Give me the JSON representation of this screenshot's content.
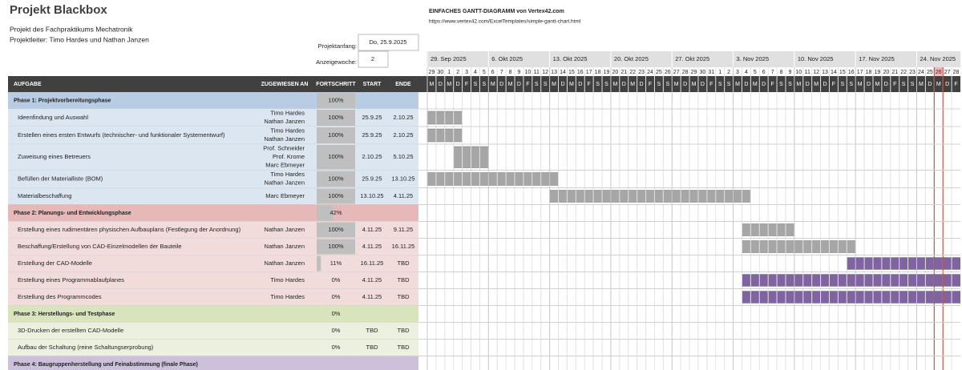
{
  "header": {
    "title": "Projekt Blackbox",
    "subtitle": "Projekt des Fachpraktikums Mechatronik",
    "lead": "Projektleiter: Timo Hardes und Nathan Janzen",
    "template_title": "EINFACHES GANTT-DIAGRAMM von Vertex42.com",
    "template_url": "https://www.vertex42.com/ExcelTemplates/simple-gantt-chart.html",
    "start_label": "Projektanfang:",
    "start_value": "Do, 25.9.2025",
    "week_label": "Anzeigewoche:",
    "week_value": "2"
  },
  "columns": [
    "AUFGABE",
    "ZUGEWIESEN AN",
    "FORTSCHRITT",
    "START",
    "ENDE"
  ],
  "weeks": [
    "29. Sep 2025",
    "6. Okt 2025",
    "13. Okt 2025",
    "20. Okt 2025",
    "27. Okt 2025",
    "3. Nov 2025",
    "10. Nov 2025",
    "17. Nov 2025",
    "24. Nov 2025"
  ],
  "days": [
    29,
    30,
    1,
    2,
    3,
    4,
    5,
    6,
    7,
    8,
    9,
    10,
    11,
    12,
    13,
    14,
    15,
    16,
    17,
    18,
    19,
    20,
    21,
    22,
    23,
    24,
    25,
    26,
    27,
    28,
    29,
    30,
    31,
    1,
    2,
    3,
    4,
    5,
    6,
    7,
    8,
    9,
    10,
    11,
    12,
    13,
    14,
    15,
    16,
    17,
    18,
    19,
    20,
    21,
    22,
    23,
    24,
    25,
    26,
    27,
    28
  ],
  "weekdays": [
    "M",
    "D",
    "M",
    "D",
    "F",
    "S",
    "S"
  ],
  "phases": [
    {
      "name": "Phase 1: Projektvorbereitungsphase",
      "progress": "100%",
      "tasks": [
        {
          "name": "Ideenfindung und Auswahl",
          "assigned": [
            "Timo Hardes",
            "Nathan Janzen"
          ],
          "progress": "100%",
          "start": "25.9.25",
          "end": "2.10.25"
        },
        {
          "name": "Erstellen eines ersten Entwurfs (technischer- und funktionaler Systementwurf)",
          "assigned": [
            "Timo Hardes",
            "Nathan Janzen"
          ],
          "progress": "100%",
          "start": "25.9.25",
          "end": "2.10.25"
        },
        {
          "name": "Zuweisung eines Betreuers",
          "assigned": [
            "Prof. Schneider",
            "Prof. Krome",
            "Marc Ebmeyer"
          ],
          "progress": "100%",
          "start": "2.10.25",
          "end": "5.10.25"
        },
        {
          "name": "Befüllen der Materialliste (BOM)",
          "assigned": [
            "Timo Hardes",
            "Nathan Janzen"
          ],
          "progress": "100%",
          "start": "25.9.25",
          "end": "13.10.25"
        },
        {
          "name": "Materialbeschaffung",
          "assigned": [
            "Marc Ebmeyer"
          ],
          "progress": "100%",
          "start": "13.10.25",
          "end": "4.11.25"
        }
      ]
    },
    {
      "name": "Phase 2: Planungs- und Entwicklungsphase",
      "progress": "42%",
      "tasks": [
        {
          "name": "Erstellung eines rudimentären physischen Aufbauplans (Festlegung der  Anordnung)",
          "assigned": [
            "Nathan Janzen"
          ],
          "progress": "100%",
          "start": "4.11.25",
          "end": "9.11.25"
        },
        {
          "name": "Beschaffung/Erstellung von CAD-Einzelmodellen der Bauteile",
          "assigned": [
            "Nathan Janzen"
          ],
          "progress": "100%",
          "start": "4.11.25",
          "end": "16.11.25"
        },
        {
          "name": "Erstellung der CAD-Modelle",
          "assigned": [
            "Nathan Janzen"
          ],
          "progress": "11%",
          "start": "16.11.25",
          "end": "TBD"
        },
        {
          "name": "Erstellung eines Programmablaufplanes",
          "assigned": [
            "Timo Hardes"
          ],
          "progress": "0%",
          "start": "4.11.25",
          "end": "TBD"
        },
        {
          "name": "Erstellung des Programmcodes",
          "assigned": [
            "Timo Hardes"
          ],
          "progress": "0%",
          "start": "4.11.25",
          "end": "TBD"
        }
      ]
    },
    {
      "name": "Phase 3: Herstellungs- und Testphase",
      "progress": "0%",
      "tasks": [
        {
          "name": "3D-Drucken der erstellten CAD-Modelle",
          "assigned": [],
          "progress": "0%",
          "start": "TBD",
          "end": "TBD"
        },
        {
          "name": "Aufbau der Schaltung (reine Schaltungserprobung)",
          "assigned": [],
          "progress": "0%",
          "start": "TBD",
          "end": "TBD"
        }
      ]
    },
    {
      "name": "Phase 4: Baugruppenherstellung und Feinabstimmung (finale Phase)",
      "tasks": []
    }
  ]
}
